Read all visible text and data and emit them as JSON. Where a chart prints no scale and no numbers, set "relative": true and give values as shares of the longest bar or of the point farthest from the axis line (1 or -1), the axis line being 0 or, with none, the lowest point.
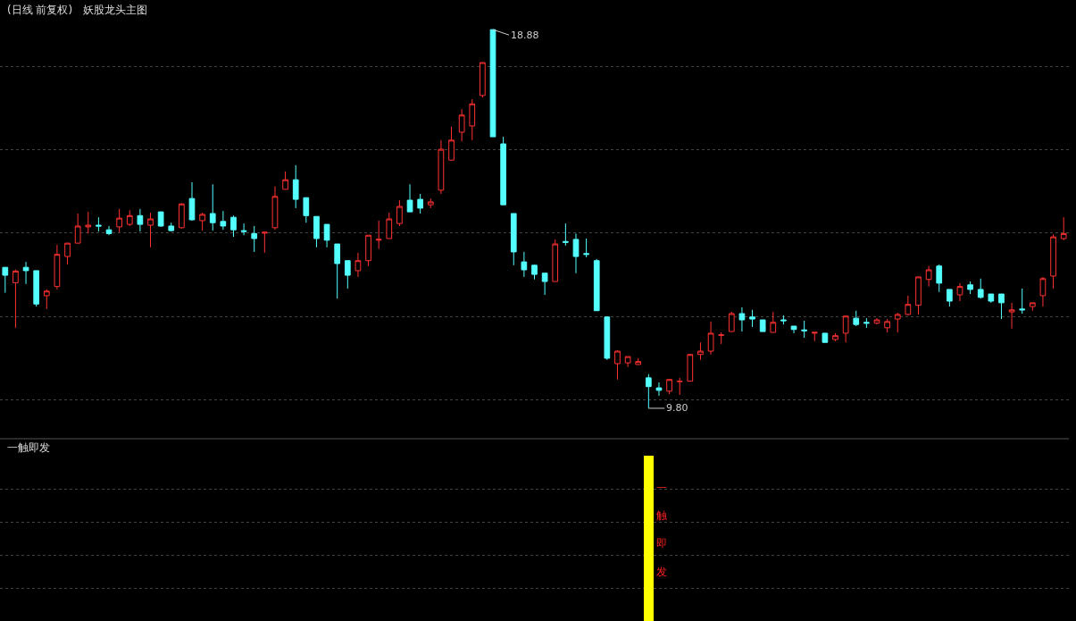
{
  "chart_data": [
    {
      "type": "candlestick",
      "title": "(日线 前复权)",
      "subtitle": "妖股龙头主图",
      "grid": "y",
      "legend": false,
      "tick_labels": false,
      "categories": [
        null,
        null,
        null,
        null,
        null,
        null,
        null,
        null,
        null,
        null,
        null,
        null,
        null,
        null,
        null,
        null,
        null,
        null,
        null,
        null,
        null,
        null,
        null,
        null,
        null,
        null,
        null,
        null,
        null,
        null,
        null,
        null,
        null,
        null,
        null,
        null,
        null,
        null,
        null,
        null,
        null,
        null,
        null,
        null,
        null,
        null,
        null,
        null,
        null,
        null,
        null,
        null,
        null,
        null,
        null,
        null,
        null,
        null,
        null,
        null,
        null,
        null,
        null,
        null,
        null,
        null,
        null,
        null,
        null,
        null,
        null,
        null,
        null,
        null,
        null,
        null,
        null,
        null,
        null,
        null,
        null,
        null,
        null,
        null,
        null,
        null,
        null,
        null,
        null,
        null,
        null,
        null,
        null,
        null,
        null,
        null,
        null,
        null,
        null,
        null,
        null,
        null,
        null
      ],
      "ohlc": [
        [
          13.18,
          13.18,
          12.57,
          12.99
        ],
        [
          12.81,
          13.13,
          11.73,
          13.09
        ],
        [
          13.18,
          13.31,
          12.78,
          13.1
        ],
        [
          13.1,
          13.1,
          12.24,
          12.3
        ],
        [
          12.5,
          12.65,
          12.18,
          12.61
        ],
        [
          12.72,
          13.72,
          12.65,
          13.49
        ],
        [
          13.44,
          13.76,
          13.25,
          13.76
        ],
        [
          13.76,
          14.47,
          13.76,
          14.17
        ],
        [
          14.15,
          14.51,
          13.99,
          14.19
        ],
        [
          14.19,
          14.38,
          14.04,
          14.17
        ],
        [
          14.08,
          14.17,
          13.95,
          13.99
        ],
        [
          14.15,
          14.58,
          14.02,
          14.36
        ],
        [
          14.21,
          14.55,
          14.17,
          14.42
        ],
        [
          14.42,
          14.58,
          14.04,
          14.21
        ],
        [
          14.19,
          14.49,
          13.66,
          14.34
        ],
        [
          14.51,
          14.51,
          14.15,
          14.17
        ],
        [
          14.17,
          14.25,
          14.04,
          14.06
        ],
        [
          14.13,
          14.72,
          14.11,
          14.7
        ],
        [
          14.83,
          15.22,
          14.3,
          14.32
        ],
        [
          14.3,
          14.49,
          14.06,
          14.45
        ],
        [
          14.47,
          15.17,
          14.06,
          14.25
        ],
        [
          14.28,
          14.53,
          14.08,
          14.17
        ],
        [
          14.38,
          14.42,
          13.91,
          14.08
        ],
        [
          14.06,
          14.23,
          13.95,
          14.04
        ],
        [
          13.99,
          14.17,
          13.55,
          13.87
        ],
        [
          14.0,
          14.02,
          13.53,
          14.02
        ],
        [
          14.13,
          15.12,
          14.08,
          14.88
        ],
        [
          15.05,
          15.48,
          15.05,
          15.28
        ],
        [
          15.28,
          15.63,
          14.6,
          14.81
        ],
        [
          14.85,
          14.85,
          14.25,
          14.42
        ],
        [
          14.4,
          14.4,
          13.66,
          13.87
        ],
        [
          14.21,
          14.21,
          13.66,
          13.83
        ],
        [
          13.74,
          13.74,
          12.43,
          13.27
        ],
        [
          13.34,
          13.34,
          12.67,
          12.99
        ],
        [
          13.1,
          13.53,
          12.95,
          13.34
        ],
        [
          13.34,
          13.95,
          13.21,
          13.95
        ],
        [
          13.83,
          14.3,
          13.62,
          13.85
        ],
        [
          13.87,
          14.49,
          13.87,
          14.34
        ],
        [
          14.23,
          14.79,
          14.17,
          14.64
        ],
        [
          14.79,
          15.17,
          14.51,
          14.51
        ],
        [
          14.81,
          14.94,
          14.47,
          14.6
        ],
        [
          14.68,
          14.83,
          14.6,
          14.75
        ],
        [
          15.03,
          16.23,
          14.94,
          16.01
        ],
        [
          15.75,
          16.55,
          15.75,
          16.23
        ],
        [
          16.42,
          16.97,
          16.2,
          16.83
        ],
        [
          16.57,
          17.21,
          16.23,
          17.1
        ],
        [
          17.3,
          18.09,
          17.25,
          18.09
        ],
        [
          18.88,
          18.88,
          16.31,
          16.31
        ],
        [
          16.14,
          16.31,
          14.68,
          14.68
        ],
        [
          14.47,
          14.47,
          13.23,
          13.55
        ],
        [
          13.31,
          13.55,
          12.95,
          13.12
        ],
        [
          13.23,
          13.23,
          12.89,
          13.01
        ],
        [
          13.04,
          13.04,
          12.52,
          12.84
        ],
        [
          12.84,
          13.85,
          12.84,
          13.74
        ],
        [
          13.8,
          14.23,
          13.7,
          13.78
        ],
        [
          13.85,
          13.99,
          13.04,
          13.44
        ],
        [
          13.51,
          13.87,
          13.42,
          13.49
        ],
        [
          13.34,
          13.38,
          12.14,
          12.14
        ],
        [
          11.99,
          11.99,
          10.96,
          11.0
        ],
        [
          10.87,
          11.19,
          10.49,
          11.17
        ],
        [
          10.89,
          11.04,
          10.79,
          11.04
        ],
        [
          10.85,
          11.0,
          10.85,
          10.92
        ],
        [
          10.53,
          10.62,
          9.8,
          10.32
        ],
        [
          10.29,
          10.42,
          10.1,
          10.23
        ],
        [
          10.21,
          10.49,
          10.14,
          10.49
        ],
        [
          10.44,
          10.53,
          10.12,
          10.45
        ],
        [
          10.45,
          11.09,
          10.45,
          11.09
        ],
        [
          11.09,
          11.38,
          10.96,
          11.17
        ],
        [
          11.17,
          11.88,
          11.09,
          11.6
        ],
        [
          11.55,
          11.62,
          11.34,
          11.56
        ],
        [
          11.64,
          12.11,
          11.64,
          12.07
        ],
        [
          12.07,
          12.22,
          11.64,
          11.92
        ],
        [
          11.99,
          12.16,
          11.75,
          11.94
        ],
        [
          11.92,
          11.92,
          11.64,
          11.64
        ],
        [
          11.62,
          12.11,
          11.62,
          11.86
        ],
        [
          11.92,
          12.03,
          11.81,
          11.9
        ],
        [
          11.77,
          11.77,
          11.6,
          11.69
        ],
        [
          11.68,
          11.9,
          11.49,
          11.66
        ],
        [
          11.6,
          11.62,
          11.41,
          11.62
        ],
        [
          11.6,
          11.6,
          11.38,
          11.38
        ],
        [
          11.45,
          11.6,
          11.41,
          11.54
        ],
        [
          11.6,
          12.01,
          11.38,
          12.01
        ],
        [
          11.96,
          12.14,
          11.77,
          11.81
        ],
        [
          11.86,
          11.96,
          11.73,
          11.84
        ],
        [
          11.84,
          11.96,
          11.81,
          11.92
        ],
        [
          11.73,
          11.94,
          11.62,
          11.88
        ],
        [
          11.94,
          12.09,
          11.62,
          12.05
        ],
        [
          12.05,
          12.5,
          12.03,
          12.29
        ],
        [
          12.27,
          12.95,
          12.05,
          12.95
        ],
        [
          12.89,
          13.21,
          12.72,
          13.12
        ],
        [
          13.21,
          13.25,
          12.59,
          12.8
        ],
        [
          12.65,
          12.65,
          12.24,
          12.37
        ],
        [
          12.52,
          12.8,
          12.37,
          12.72
        ],
        [
          12.76,
          12.84,
          12.54,
          12.65
        ],
        [
          12.65,
          12.91,
          12.43,
          12.46
        ],
        [
          12.54,
          12.54,
          12.33,
          12.37
        ],
        [
          12.54,
          12.54,
          11.94,
          12.33
        ],
        [
          12.11,
          12.33,
          11.71,
          12.16
        ],
        [
          12.18,
          12.67,
          12.07,
          12.16
        ],
        [
          12.24,
          12.33,
          12.14,
          12.33
        ],
        [
          12.5,
          12.95,
          12.24,
          12.91
        ],
        [
          12.97,
          13.97,
          12.67,
          13.91
        ],
        [
          13.87,
          14.38,
          13.83,
          13.99
        ]
      ],
      "annotations": [
        "18.88",
        "9.80"
      ]
    },
    {
      "type": "bar",
      "title": "一触即发",
      "relative": true,
      "grid": "y",
      "legend": false,
      "tick_labels": false,
      "categories": [
        null,
        null,
        null,
        null,
        null,
        null,
        null,
        null,
        null,
        null,
        null,
        null,
        null,
        null,
        null,
        null,
        null,
        null,
        null,
        null,
        null,
        null,
        null,
        null,
        null,
        null,
        null,
        null,
        null,
        null,
        null,
        null,
        null,
        null,
        null,
        null,
        null,
        null,
        null,
        null,
        null,
        null,
        null,
        null,
        null,
        null,
        null,
        null,
        null,
        null,
        null,
        null,
        null,
        null,
        null,
        null,
        null,
        null,
        null,
        null,
        null,
        null,
        null,
        null,
        null,
        null,
        null,
        null,
        null,
        null,
        null,
        null,
        null,
        null,
        null,
        null,
        null,
        null,
        null,
        null,
        null,
        null,
        null,
        null,
        null,
        null,
        null,
        null,
        null,
        null,
        null,
        null,
        null,
        null,
        null,
        null,
        null,
        null,
        null,
        null,
        null,
        null,
        null
      ],
      "series": [
        {
          "color": "#ffff00",
          "values": [
            null,
            null,
            null,
            null,
            null,
            null,
            null,
            null,
            null,
            null,
            null,
            null,
            null,
            null,
            null,
            null,
            null,
            null,
            null,
            null,
            null,
            null,
            null,
            null,
            null,
            null,
            null,
            null,
            null,
            null,
            null,
            null,
            null,
            null,
            null,
            null,
            null,
            null,
            null,
            null,
            null,
            null,
            null,
            null,
            null,
            null,
            null,
            null,
            null,
            null,
            null,
            null,
            null,
            null,
            null,
            null,
            null,
            null,
            null,
            null,
            null,
            null,
            1,
            null,
            null,
            null,
            null,
            null,
            null,
            null,
            null,
            null,
            null,
            null,
            null,
            null,
            null,
            null,
            null,
            null,
            null,
            null,
            null,
            null,
            null,
            null,
            null,
            null,
            null,
            null,
            null,
            null,
            null,
            null,
            null,
            null,
            null,
            null,
            null,
            null,
            null,
            null,
            null
          ]
        }
      ],
      "annotations": [
        "一触即发"
      ]
    }
  ]
}
